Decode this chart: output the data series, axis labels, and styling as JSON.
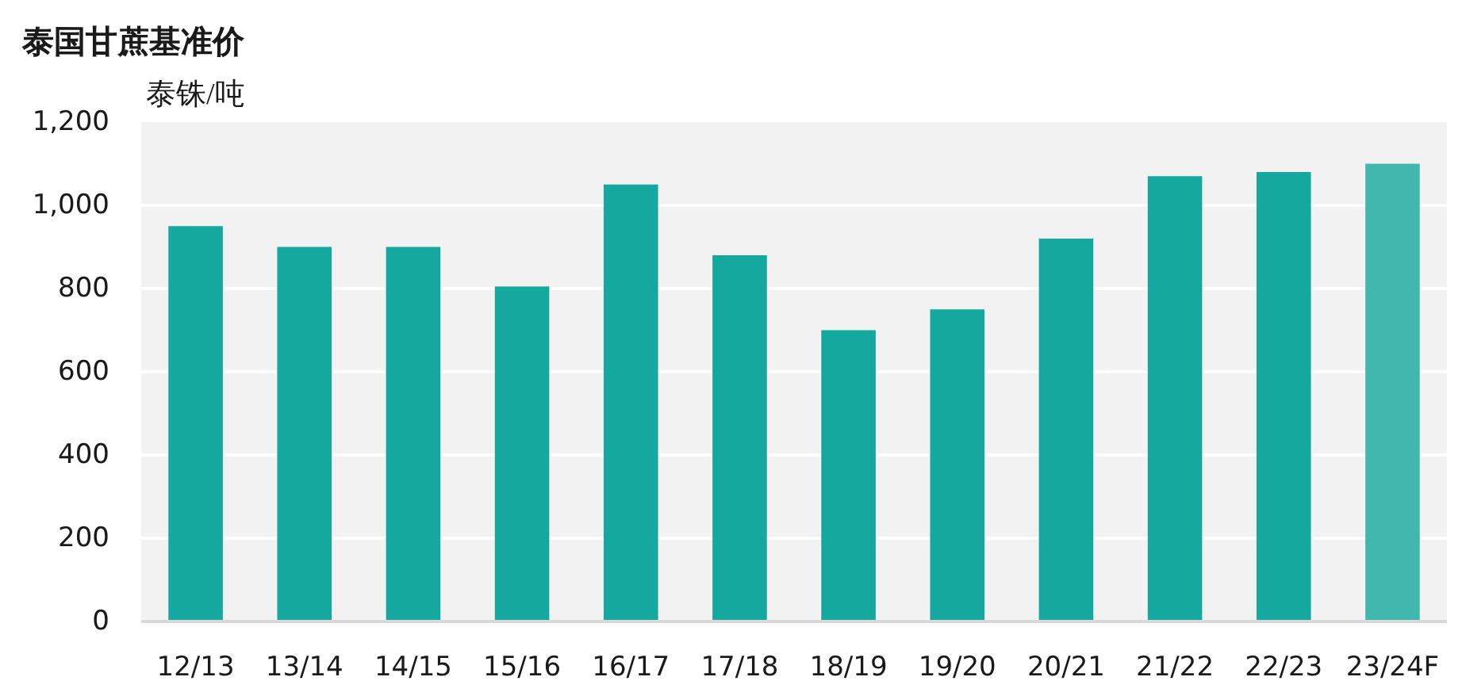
{
  "chart_data": {
    "type": "bar",
    "title": "泰国甘蔗基准价",
    "ylabel": "泰铢/吨",
    "categories": [
      "12/13",
      "13/14",
      "14/15",
      "15/16",
      "16/17",
      "17/18",
      "18/19",
      "19/20",
      "20/21",
      "21/22",
      "22/23",
      "23/24F"
    ],
    "values": [
      950,
      900,
      900,
      805,
      1050,
      880,
      700,
      750,
      920,
      1070,
      1080,
      1100
    ],
    "colors": [
      "#14a89e",
      "#14a89e",
      "#14a89e",
      "#14a89e",
      "#14a89e",
      "#14a89e",
      "#14a89e",
      "#14a89e",
      "#14a89e",
      "#14a89e",
      "#14a89e",
      "#42b7ae"
    ],
    "ylim": [
      0,
      1200
    ],
    "yticks": [
      0,
      200,
      400,
      600,
      800,
      {
        "value": 1000,
        "label": "1,000"
      },
      {
        "value": 1200,
        "label": "1,200"
      }
    ],
    "grid": "y"
  }
}
